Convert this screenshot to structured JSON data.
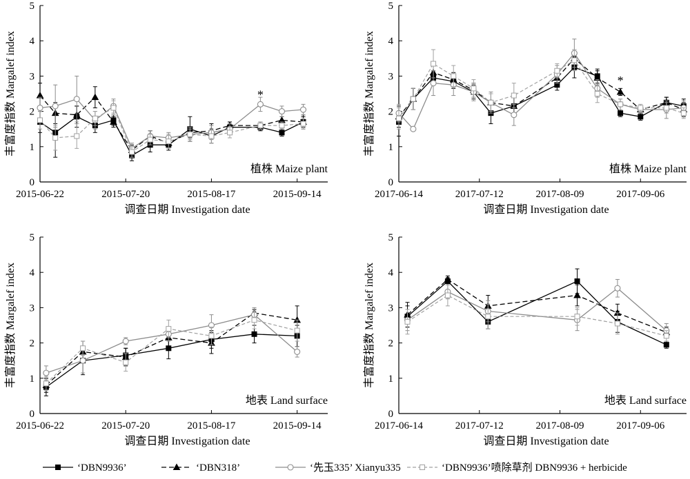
{
  "legend": [
    {
      "label": "‘DBN9936’",
      "color": "#000000",
      "marker": "square-filled",
      "dash": "solid"
    },
    {
      "label": "‘DBN318’",
      "color": "#000000",
      "marker": "triangle-filled",
      "dash": "dashed"
    },
    {
      "label": "‘先玉335’ Xianyu335",
      "color": "#808080",
      "marker": "circle-open",
      "dash": "solid"
    },
    {
      "label": "‘DBN9936’喷除草剂 DBN9936 + herbicide",
      "color": "#9a9a9a",
      "marker": "square-open",
      "dash": "dashed"
    }
  ],
  "chart_data": [
    {
      "type": "line",
      "panel_label": "植株 Maize plant",
      "xlabel": "调查日期 Investigation date",
      "ylabel": "丰富度指数 Margalef index",
      "ylim": [
        0,
        5
      ],
      "yticks": [
        "0",
        "1",
        "2",
        "3",
        "4",
        "5"
      ],
      "xlim": [
        "2015-06-22",
        "2015-09-24"
      ],
      "xticks": [
        "2015-06-22",
        "2015-07-20",
        "2015-08-17",
        "2015-09-14"
      ],
      "annotations": [
        {
          "text": "*",
          "x": "2015-09-02",
          "y": 2.45
        }
      ],
      "series": [
        {
          "name": "‘DBN9936’",
          "x": [
            "2015-06-22",
            "2015-06-27",
            "2015-07-04",
            "2015-07-10",
            "2015-07-16",
            "2015-07-22",
            "2015-07-28",
            "2015-08-03",
            "2015-08-10",
            "2015-08-17",
            "2015-08-23",
            "2015-09-02",
            "2015-09-09",
            "2015-09-16"
          ],
          "y": [
            1.7,
            1.4,
            1.85,
            1.6,
            1.75,
            0.75,
            1.05,
            1.05,
            1.5,
            1.3,
            1.55,
            1.55,
            1.4,
            1.7
          ],
          "err": [
            0.3,
            0.7,
            0.3,
            0.2,
            0.15,
            0.15,
            0.2,
            0.15,
            0.35,
            0.2,
            0.15,
            0.1,
            0.1,
            0.2
          ]
        },
        {
          "name": "‘DBN318’",
          "x": [
            "2015-06-22",
            "2015-06-27",
            "2015-07-04",
            "2015-07-10",
            "2015-07-16",
            "2015-07-22",
            "2015-07-28",
            "2015-08-03",
            "2015-08-10",
            "2015-08-17",
            "2015-08-23",
            "2015-09-02",
            "2015-09-09",
            "2015-09-16"
          ],
          "y": [
            2.45,
            1.95,
            1.9,
            2.4,
            1.7,
            0.9,
            1.3,
            1.1,
            1.4,
            1.45,
            1.6,
            1.6,
            1.75,
            1.7
          ],
          "err": [
            0.35,
            0.3,
            0.25,
            0.3,
            0.15,
            0.15,
            0.15,
            0.1,
            0.15,
            0.2,
            0.1,
            0.1,
            0.1,
            0.15
          ]
        },
        {
          "name": "‘先玉335’ Xianyu335",
          "x": [
            "2015-06-22",
            "2015-06-27",
            "2015-07-04",
            "2015-07-10",
            "2015-07-16",
            "2015-07-22",
            "2015-07-28",
            "2015-08-03",
            "2015-08-10",
            "2015-08-17",
            "2015-08-23",
            "2015-09-02",
            "2015-09-09",
            "2015-09-16"
          ],
          "y": [
            2.1,
            2.15,
            2.35,
            1.75,
            2.15,
            0.95,
            1.3,
            1.25,
            1.35,
            1.4,
            1.5,
            2.2,
            2.0,
            2.05
          ],
          "err": [
            0.3,
            0.6,
            0.65,
            0.25,
            0.2,
            0.15,
            0.15,
            0.15,
            0.2,
            0.2,
            0.15,
            0.2,
            0.15,
            0.15
          ]
        },
        {
          "name": "‘DBN9936’喷除草剂 DBN9936 + herbicide",
          "x": [
            "2015-06-22",
            "2015-06-27",
            "2015-07-04",
            "2015-07-10",
            "2015-07-16",
            "2015-07-22",
            "2015-07-28",
            "2015-08-03",
            "2015-08-10",
            "2015-08-17",
            "2015-08-23",
            "2015-09-02",
            "2015-09-09",
            "2015-09-16"
          ],
          "y": [
            1.75,
            1.25,
            1.3,
            1.8,
            2.1,
            0.85,
            1.2,
            1.15,
            1.35,
            1.3,
            1.4,
            1.6,
            1.6,
            1.65
          ],
          "err": [
            0.25,
            0.35,
            0.35,
            0.2,
            0.2,
            0.15,
            0.15,
            0.2,
            0.15,
            0.2,
            0.15,
            0.1,
            0.1,
            0.15
          ]
        }
      ]
    },
    {
      "type": "line",
      "panel_label": "植株 Maize plant",
      "xlabel": "调查日期 Investigation date",
      "ylabel": "丰富度指数 Margalef index",
      "ylim": [
        0,
        5
      ],
      "yticks": [
        "0",
        "1",
        "2",
        "3",
        "4",
        "5"
      ],
      "xlim": [
        "2017-06-14",
        "2017-09-22"
      ],
      "xticks": [
        "2017-06-14",
        "2017-07-12",
        "2017-08-09",
        "2017-09-06"
      ],
      "annotations": [
        {
          "text": "*",
          "x": "2017-08-30",
          "y": 2.85
        }
      ],
      "series": [
        {
          "name": "‘DBN9936’",
          "x": [
            "2017-06-14",
            "2017-06-19",
            "2017-06-26",
            "2017-07-03",
            "2017-07-10",
            "2017-07-16",
            "2017-07-24",
            "2017-08-08",
            "2017-08-14",
            "2017-08-22",
            "2017-08-30",
            "2017-09-06",
            "2017-09-15",
            "2017-09-21"
          ],
          "y": [
            1.7,
            2.35,
            2.95,
            2.85,
            2.55,
            1.95,
            2.15,
            2.75,
            3.25,
            3.0,
            1.95,
            1.85,
            2.25,
            2.15
          ],
          "err": [
            0.4,
            0.3,
            0.2,
            0.2,
            0.2,
            0.3,
            0.25,
            0.15,
            0.3,
            0.2,
            0.1,
            0.1,
            0.15,
            0.2
          ]
        },
        {
          "name": "‘DBN318’",
          "x": [
            "2017-06-14",
            "2017-06-19",
            "2017-06-26",
            "2017-07-03",
            "2017-07-10",
            "2017-07-16",
            "2017-07-24",
            "2017-08-08",
            "2017-08-14",
            "2017-08-22",
            "2017-08-30",
            "2017-09-06",
            "2017-09-15",
            "2017-09-21"
          ],
          "y": [
            1.85,
            2.35,
            3.1,
            2.9,
            2.6,
            2.25,
            2.15,
            2.95,
            3.5,
            2.95,
            2.55,
            2.05,
            2.25,
            2.05
          ],
          "err": [
            0.3,
            0.3,
            0.25,
            0.2,
            0.2,
            0.25,
            0.25,
            0.2,
            0.25,
            0.2,
            0.1,
            0.1,
            0.15,
            0.2
          ]
        },
        {
          "name": "‘先玉335’ Xianyu335",
          "x": [
            "2017-06-14",
            "2017-06-19",
            "2017-06-26",
            "2017-07-03",
            "2017-07-10",
            "2017-07-16",
            "2017-07-24",
            "2017-08-08",
            "2017-08-14",
            "2017-08-22",
            "2017-08-30",
            "2017-09-06",
            "2017-09-15",
            "2017-09-21"
          ],
          "y": [
            1.95,
            1.5,
            2.8,
            2.75,
            2.55,
            2.25,
            1.9,
            3.05,
            3.65,
            2.65,
            2.2,
            2.05,
            2.05,
            2.1
          ],
          "err": [
            0.25,
            0.05,
            0.35,
            0.3,
            0.25,
            0.3,
            0.3,
            0.25,
            0.4,
            0.25,
            0.15,
            0.1,
            0.25,
            0.2
          ]
        },
        {
          "name": "‘DBN9936’喷除草剂 DBN9936 + herbicide",
          "x": [
            "2017-06-14",
            "2017-06-19",
            "2017-06-26",
            "2017-07-03",
            "2017-07-10",
            "2017-07-16",
            "2017-07-24",
            "2017-08-08",
            "2017-08-14",
            "2017-08-22",
            "2017-08-30",
            "2017-09-06",
            "2017-09-15",
            "2017-09-21"
          ],
          "y": [
            1.8,
            2.35,
            3.35,
            3.0,
            2.65,
            2.25,
            2.45,
            3.15,
            3.45,
            2.5,
            2.2,
            2.1,
            2.1,
            1.95
          ],
          "err": [
            0.3,
            0.3,
            0.4,
            0.3,
            0.25,
            0.25,
            0.35,
            0.2,
            0.3,
            0.25,
            0.15,
            0.1,
            0.15,
            0.15
          ]
        }
      ]
    },
    {
      "type": "line",
      "panel_label": "地表 Land surface",
      "xlabel": "调查日期 Investigation date",
      "ylabel": "丰富度指数 Margalef index",
      "ylim": [
        0,
        5
      ],
      "yticks": [
        "0",
        "1",
        "2",
        "3",
        "4",
        "5"
      ],
      "xlim": [
        "2015-06-22",
        "2015-09-24"
      ],
      "xticks": [
        "2015-06-22",
        "2015-07-20",
        "2015-08-17",
        "2015-09-14"
      ],
      "annotations": [],
      "series": [
        {
          "name": "‘DBN9936’",
          "x": [
            "2015-06-24",
            "2015-07-06",
            "2015-07-20",
            "2015-08-03",
            "2015-08-17",
            "2015-08-31",
            "2015-09-14"
          ],
          "y": [
            0.75,
            1.5,
            1.65,
            1.85,
            2.1,
            2.25,
            2.2
          ],
          "err": [
            0.25,
            0.4,
            0.2,
            0.3,
            0.25,
            0.25,
            0.3
          ]
        },
        {
          "name": "‘DBN318’",
          "x": [
            "2015-06-24",
            "2015-07-06",
            "2015-07-20",
            "2015-08-03",
            "2015-08-17",
            "2015-08-31",
            "2015-09-14"
          ],
          "y": [
            0.8,
            1.75,
            1.6,
            2.15,
            2.0,
            2.85,
            2.65
          ],
          "err": [
            0.2,
            0.3,
            0.25,
            0.3,
            0.3,
            0.1,
            0.4
          ]
        },
        {
          "name": "‘先玉335’ Xianyu335",
          "x": [
            "2015-06-24",
            "2015-07-06",
            "2015-07-20",
            "2015-08-03",
            "2015-08-17",
            "2015-08-31",
            "2015-09-14"
          ],
          "y": [
            1.15,
            1.5,
            2.05,
            2.25,
            2.5,
            2.8,
            1.75
          ],
          "err": [
            0.2,
            0.35,
            0.1,
            0.2,
            0.3,
            0.2,
            0.15
          ]
        },
        {
          "name": "‘DBN9936’喷除草剂 DBN9936 + herbicide",
          "x": [
            "2015-06-24",
            "2015-07-06",
            "2015-07-20",
            "2015-08-03",
            "2015-08-17",
            "2015-08-31",
            "2015-09-14"
          ],
          "y": [
            0.85,
            1.85,
            1.45,
            2.4,
            2.2,
            2.65,
            2.35
          ],
          "err": [
            0.2,
            0.2,
            0.25,
            0.25,
            0.25,
            0.25,
            0.3
          ]
        }
      ]
    },
    {
      "type": "line",
      "panel_label": "地表 Land surface",
      "xlabel": "调查日期 Investigation date",
      "ylabel": "丰富度指数 Margalef index",
      "ylim": [
        0,
        5
      ],
      "yticks": [
        "0",
        "1",
        "2",
        "3",
        "4",
        "5"
      ],
      "xlim": [
        "2017-06-14",
        "2017-09-22"
      ],
      "xticks": [
        "2017-06-14",
        "2017-07-12",
        "2017-08-09",
        "2017-09-06"
      ],
      "annotations": [],
      "series": [
        {
          "name": "‘DBN9936’",
          "x": [
            "2017-06-17",
            "2017-07-01",
            "2017-07-15",
            "2017-08-15",
            "2017-08-29",
            "2017-09-15"
          ],
          "y": [
            2.75,
            3.75,
            2.6,
            3.75,
            2.6,
            1.95
          ],
          "err": [
            0.3,
            0.1,
            0.2,
            0.35,
            0.3,
            0.1
          ]
        },
        {
          "name": "‘DBN318’",
          "x": [
            "2017-06-17",
            "2017-07-01",
            "2017-07-15",
            "2017-08-15",
            "2017-08-29",
            "2017-09-15"
          ],
          "y": [
            2.8,
            3.8,
            3.05,
            3.35,
            2.85,
            2.3
          ],
          "err": [
            0.35,
            0.1,
            0.3,
            0.3,
            0.25,
            0.15
          ]
        },
        {
          "name": "‘先玉335’ Xianyu335",
          "x": [
            "2017-06-17",
            "2017-07-01",
            "2017-07-15",
            "2017-08-15",
            "2017-08-29",
            "2017-09-15"
          ],
          "y": [
            2.65,
            3.45,
            2.9,
            2.65,
            3.55,
            2.35
          ],
          "err": [
            0.3,
            0.2,
            0.3,
            0.3,
            0.25,
            0.2
          ]
        },
        {
          "name": "‘DBN9936’喷除草剂 DBN9936 + herbicide",
          "x": [
            "2017-06-17",
            "2017-07-01",
            "2017-07-15",
            "2017-08-15",
            "2017-08-29",
            "2017-09-15"
          ],
          "y": [
            2.6,
            3.35,
            2.75,
            2.75,
            2.55,
            2.2
          ],
          "err": [
            0.35,
            0.3,
            0.35,
            0.25,
            0.3,
            0.15
          ]
        }
      ]
    }
  ]
}
